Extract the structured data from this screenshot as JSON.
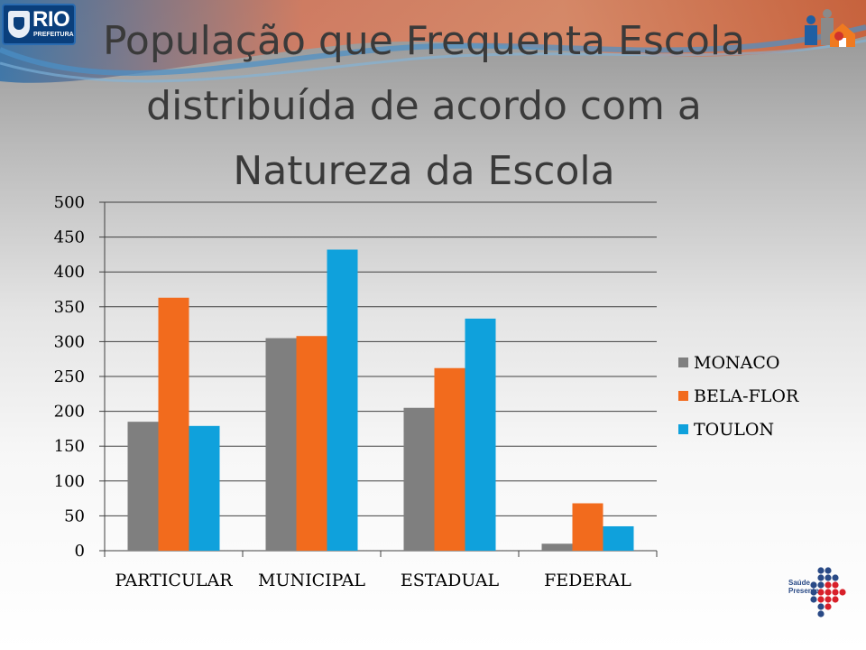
{
  "header": {
    "logo_text": "RIO",
    "logo_subtext": "PREFEITURA"
  },
  "title": {
    "line1": "População que Frequenta Escola",
    "line2": "distribuída de  acordo com  a",
    "line3": "Natureza da Escola"
  },
  "footer_logo": {
    "line1": "Saúde",
    "line2": "Presente"
  },
  "colors": {
    "monaco": "#7f7f7f",
    "bela_flor": "#f26b1d",
    "toulon": "#0fa1dc"
  },
  "chart_data": {
    "type": "bar",
    "title": "População que Frequenta Escola distribuída de  acordo com  a Natureza da Escola",
    "categories": [
      "PARTICULAR",
      "MUNICIPAL",
      "ESTADUAL",
      "FEDERAL"
    ],
    "series": [
      {
        "name": "MONACO",
        "color": "#7f7f7f",
        "values": [
          185,
          305,
          205,
          10
        ]
      },
      {
        "name": "BELA-FLOR",
        "color": "#f26b1d",
        "values": [
          363,
          308,
          262,
          68
        ]
      },
      {
        "name": "TOULON",
        "color": "#0fa1dc",
        "values": [
          179,
          432,
          333,
          35
        ]
      }
    ],
    "ylim": [
      0,
      500
    ],
    "yticks": [
      "0",
      "50",
      "100",
      "150",
      "200",
      "250",
      "300",
      "350",
      "400",
      "450",
      "500"
    ],
    "grid": true,
    "legend_position": "right"
  }
}
